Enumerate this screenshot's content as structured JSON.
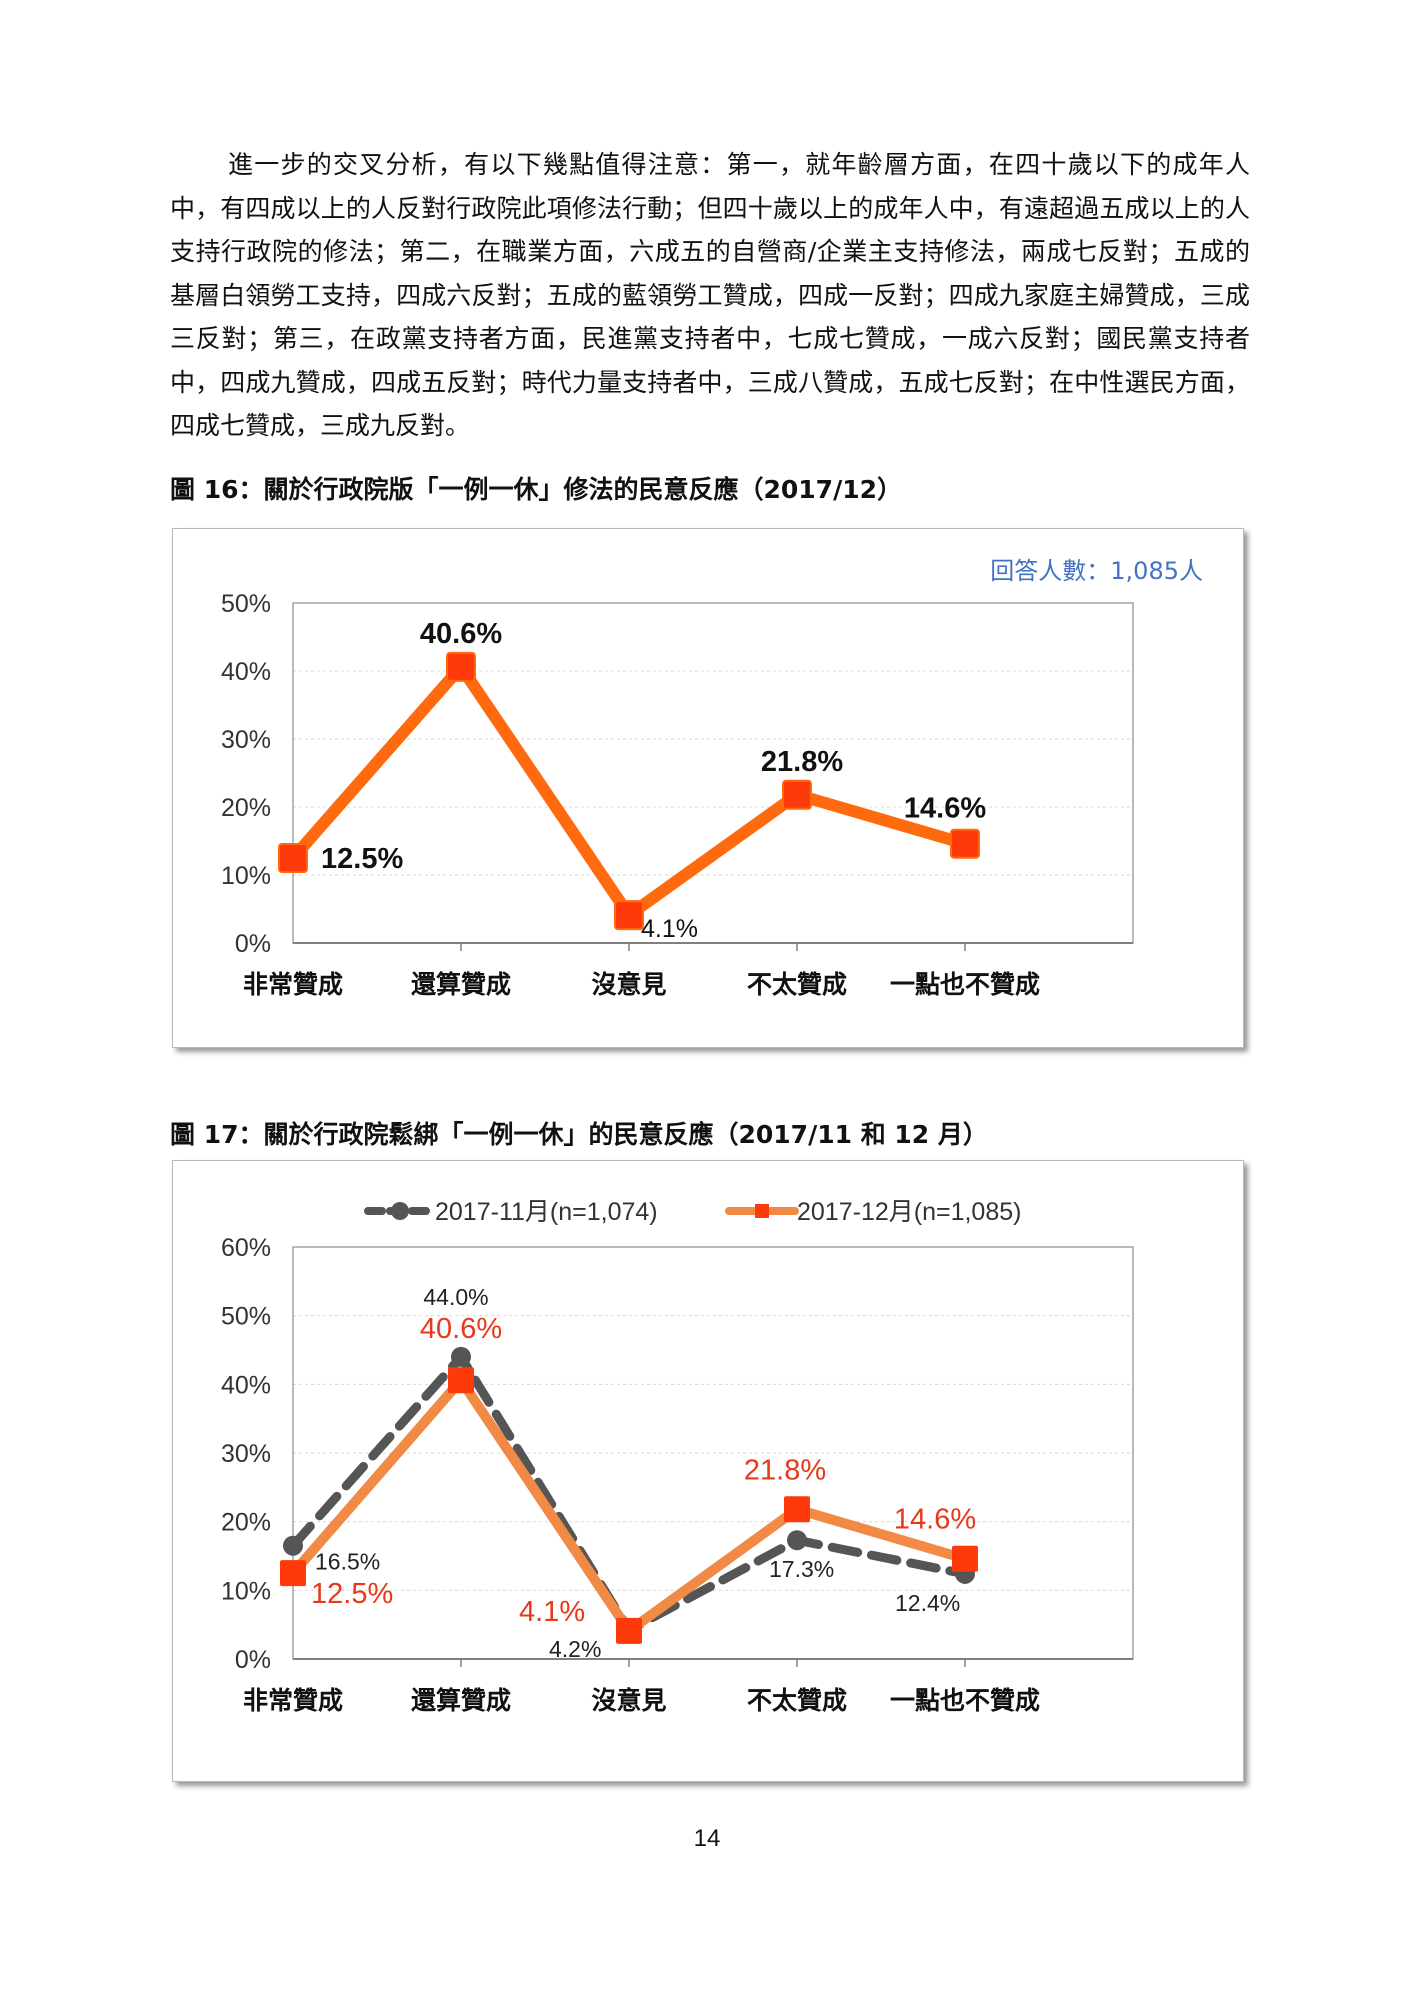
{
  "paragraph": "進一步的交叉分析，有以下幾點值得注意：第一，就年齡層方面，在四十歲以下的成年人中，有四成以上的人反對行政院此項修法行動；但四十歲以上的成年人中，有遠超過五成以上的人支持行政院的修法；第二，在職業方面，六成五的自營商/企業主支持修法，兩成七反對；五成的基層白領勞工支持，四成六反對；五成的藍領勞工贊成，四成一反對；四成九家庭主婦贊成，三成三反對；第三，在政黨支持者方面，民進黨支持者中，七成七贊成，一成六反對；國民黨支持者中，四成九贊成，四成五反對；時代力量支持者中，三成八贊成，五成七反對；在中性選民方面，四成七贊成，三成九反對。",
  "figure16": {
    "caption": "圖 16：關於行政院版「一例一休」修法的民意反應（2017/12）"
  },
  "figure17": {
    "caption": "圖 17：關於行政院鬆綁「一例一休」的民意反應（2017/11 和 12 月）"
  },
  "page_number": "14",
  "colors": {
    "orange": "#ff6a0e",
    "orange_light": "#f08a45",
    "marker_red": "#ff3a0a",
    "gray": "#555555",
    "blue": "#4472c4",
    "label_red": "#e8381b"
  },
  "chart_data": [
    {
      "type": "line",
      "title": "",
      "note": "回答人數：1,085人",
      "categories": [
        "非常贊成",
        "還算贊成",
        "沒意見",
        "不太贊成",
        "一點也不贊成"
      ],
      "series": [
        {
          "name": "2017-12",
          "values": [
            12.5,
            40.6,
            4.1,
            21.8,
            14.6
          ],
          "labels": [
            "12.5%",
            "40.6%",
            "4.1%",
            "21.8%",
            "14.6%"
          ]
        }
      ],
      "yticks": [
        "0%",
        "10%",
        "20%",
        "30%",
        "40%",
        "50%"
      ],
      "ylim": [
        0,
        50
      ],
      "xlabel": "",
      "ylabel": "",
      "grid": true
    },
    {
      "type": "line",
      "title": "",
      "categories": [
        "非常贊成",
        "還算贊成",
        "沒意見",
        "不太贊成",
        "一點也不贊成"
      ],
      "series": [
        {
          "name": "2017-11月(n=1,074)",
          "values": [
            16.5,
            44.0,
            4.2,
            17.3,
            12.4
          ],
          "labels": [
            "16.5%",
            "44.0%",
            "4.2%",
            "17.3%",
            "12.4%"
          ]
        },
        {
          "name": "2017-12月(n=1,085)",
          "values": [
            12.5,
            40.6,
            4.1,
            21.8,
            14.6
          ],
          "labels": [
            "12.5%",
            "40.6%",
            "4.1%",
            "21.8%",
            "14.6%"
          ]
        }
      ],
      "yticks": [
        "0%",
        "10%",
        "20%",
        "30%",
        "40%",
        "50%",
        "60%"
      ],
      "ylim": [
        0,
        60
      ],
      "xlabel": "",
      "ylabel": "",
      "legend": "top-center",
      "grid": true
    }
  ]
}
